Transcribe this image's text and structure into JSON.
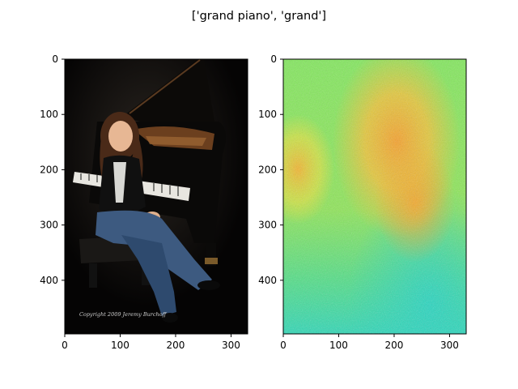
{
  "figure": {
    "title": "['grand piano', 'grand']"
  },
  "panels": [
    {
      "name": "photo",
      "image": {
        "description_icon": "photo-image",
        "watermark_text": "Copyright 2009 Jeremy Burchoff"
      },
      "xlim": [
        0,
        330
      ],
      "ylim": [
        0,
        497
      ],
      "xticks": [
        "0",
        "100",
        "200",
        "300"
      ],
      "yticks": [
        "0",
        "100",
        "200",
        "300",
        "400"
      ]
    },
    {
      "name": "heatmap",
      "image": {
        "description_icon": "saliency-heatmap",
        "colors": {
          "green": "#7be85e",
          "yellow": "#e8e23c",
          "orange": "#f5a92a",
          "teal": "#2ed8b4"
        }
      },
      "xlim": [
        0,
        330
      ],
      "ylim": [
        0,
        497
      ],
      "xticks": [
        "0",
        "100",
        "200",
        "300"
      ],
      "yticks": [
        "0",
        "100",
        "200",
        "300",
        "400"
      ]
    }
  ]
}
